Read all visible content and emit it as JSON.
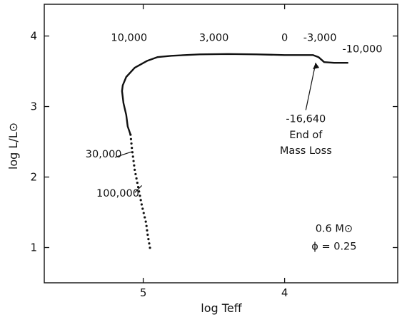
{
  "chart_data": {
    "type": "line",
    "xlabel": "log Teff",
    "ylabel": "log L/L⊙",
    "x_axis": {
      "min": 5.7,
      "max": 3.2,
      "reversed": true,
      "ticks": [
        5,
        4
      ],
      "tick_labels": [
        "5",
        "4"
      ]
    },
    "y_axis": {
      "min": 0.5,
      "max": 4.45,
      "ticks": [
        1,
        2,
        3,
        4
      ],
      "tick_labels": [
        "1",
        "2",
        "3",
        "4"
      ]
    },
    "grid": false,
    "series": [
      {
        "style": "solid",
        "points": [
          [
            3.55,
            3.62
          ],
          [
            3.65,
            3.62
          ],
          [
            3.72,
            3.63
          ],
          [
            3.76,
            3.7
          ],
          [
            3.8,
            3.73
          ],
          [
            4.0,
            3.73
          ],
          [
            4.2,
            3.74
          ],
          [
            4.4,
            3.745
          ],
          [
            4.6,
            3.74
          ],
          [
            4.8,
            3.72
          ],
          [
            4.9,
            3.7
          ],
          [
            4.97,
            3.65
          ],
          [
            5.06,
            3.55
          ],
          [
            5.12,
            3.42
          ],
          [
            5.145,
            3.3
          ],
          [
            5.15,
            3.22
          ],
          [
            5.14,
            3.05
          ],
          [
            5.12,
            2.88
          ],
          [
            5.11,
            2.72
          ],
          [
            5.09,
            2.6
          ]
        ]
      },
      {
        "style": "dotted",
        "points": [
          [
            5.09,
            2.6
          ],
          [
            5.08,
            2.4
          ],
          [
            5.06,
            2.1
          ],
          [
            5.04,
            1.9
          ],
          [
            5.01,
            1.6
          ],
          [
            4.98,
            1.35
          ],
          [
            4.97,
            1.2
          ],
          [
            4.95,
            0.97
          ]
        ]
      }
    ],
    "annotations": [
      {
        "text": "10,000",
        "x": 5.1,
        "y": 3.93
      },
      {
        "text": "3,000",
        "x": 4.5,
        "y": 3.93
      },
      {
        "text": "0",
        "x": 4.0,
        "y": 3.93
      },
      {
        "text": "-3,000",
        "x": 3.75,
        "y": 3.93
      },
      {
        "text": "-10,000",
        "x": 3.45,
        "y": 3.77
      },
      {
        "text": "-16,640",
        "x": 3.85,
        "y": 2.78
      },
      {
        "text": "End of",
        "x": 3.85,
        "y": 2.55
      },
      {
        "text": "Mass Loss",
        "x": 3.85,
        "y": 2.33
      },
      {
        "text": "30,000",
        "x": 5.28,
        "y": 2.28
      },
      {
        "text": "100,000",
        "x": 5.18,
        "y": 1.72
      },
      {
        "text": "0.6 M⊙",
        "x": 3.65,
        "y": 1.22
      },
      {
        "text": "ϕ = 0.25",
        "x": 3.65,
        "y": 0.97
      }
    ]
  }
}
